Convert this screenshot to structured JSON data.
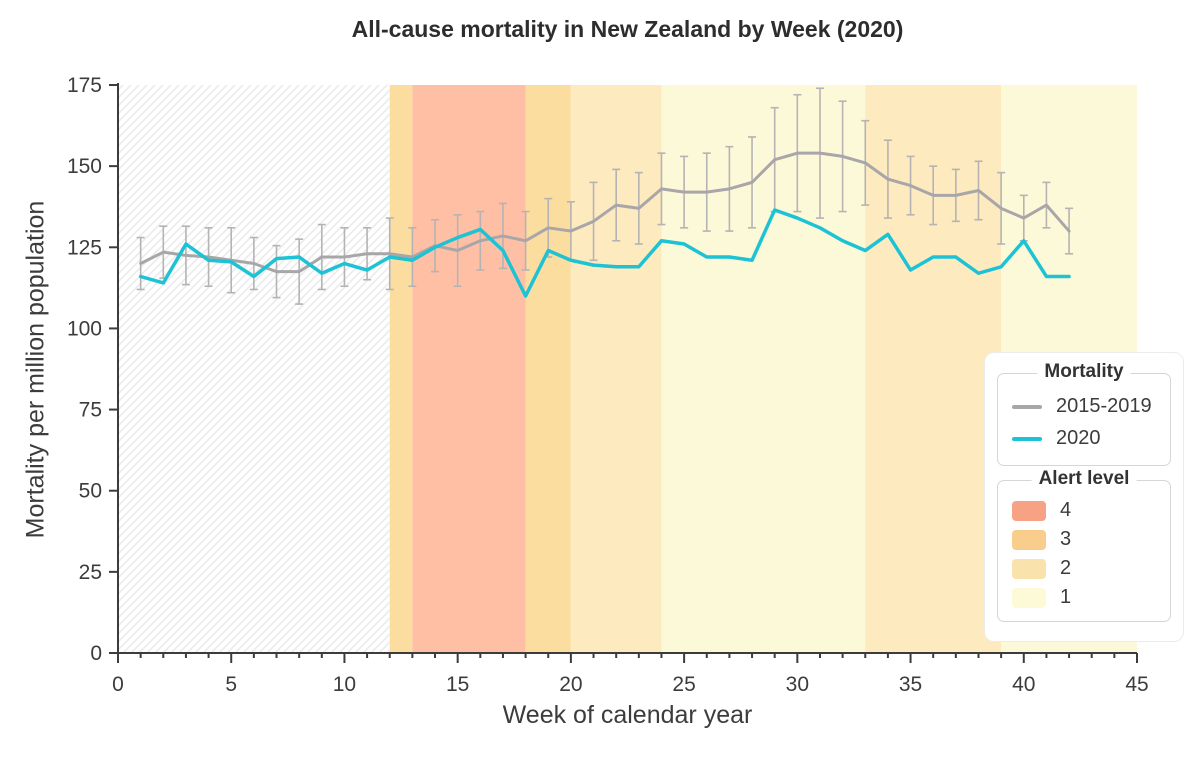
{
  "title": "All-cause mortality in New Zealand by Week (2020)",
  "x_axis": {
    "label": "Week of calendar year",
    "ticks": [
      0,
      5,
      10,
      15,
      20,
      25,
      30,
      35,
      40,
      45
    ],
    "minor_tick_step": 1
  },
  "y_axis": {
    "label": "Mortality per million population",
    "ticks": [
      0,
      25,
      50,
      75,
      100,
      125,
      150,
      175
    ]
  },
  "legend_mortality": {
    "title": "Mortality",
    "items": [
      {
        "label": "2015-2019",
        "color": "#a8a6a8"
      },
      {
        "label": "2020",
        "color": "#1dc3d4"
      }
    ]
  },
  "legend_alert": {
    "title": "Alert level",
    "items": [
      {
        "label": "4",
        "color": "#f7a284"
      },
      {
        "label": "3",
        "color": "#f9cd8b"
      },
      {
        "label": "2",
        "color": "#fae2ad"
      },
      {
        "label": "1",
        "color": "#fdfad8"
      }
    ]
  },
  "chart_data": {
    "type": "line",
    "title": "All-cause mortality in New Zealand by Week (2020)",
    "xlabel": "Week of calendar year",
    "ylabel": "Mortality per million population",
    "xlim": [
      0,
      45
    ],
    "ylim": [
      0,
      175
    ],
    "grid": false,
    "legend_position": "right",
    "x": [
      1,
      2,
      3,
      4,
      5,
      6,
      7,
      8,
      9,
      10,
      11,
      12,
      13,
      14,
      15,
      16,
      17,
      18,
      19,
      20,
      21,
      22,
      23,
      24,
      25,
      26,
      27,
      28,
      29,
      30,
      31,
      32,
      33,
      34,
      35,
      36,
      37,
      38,
      39,
      40,
      41,
      42
    ],
    "series": [
      {
        "name": "2015-2019",
        "color": "#a8a6a8",
        "error_bar_color": "#b5b3b3",
        "values": [
          120,
          123.5,
          122.5,
          122,
          121,
          120,
          117.5,
          117.5,
          122,
          122,
          123,
          123,
          122,
          125.5,
          124,
          127,
          128.5,
          127,
          131,
          130,
          133,
          138,
          137,
          143,
          142,
          142,
          143,
          145,
          152,
          154,
          154,
          153,
          151,
          146,
          144,
          141,
          141,
          142.5,
          137,
          134,
          138,
          130
        ],
        "errors": [
          8,
          8,
          9,
          9,
          10,
          8,
          8,
          10,
          10,
          9,
          8,
          11,
          9,
          8,
          11,
          9,
          10,
          9,
          9,
          9,
          12,
          11,
          11,
          11,
          11,
          12,
          13,
          14,
          16,
          18,
          20,
          17,
          13,
          12,
          9,
          9,
          8,
          9,
          11,
          7,
          7,
          7
        ]
      },
      {
        "name": "2020",
        "color": "#1dc3d4",
        "values": [
          116,
          114,
          126,
          121,
          120.5,
          116,
          121.5,
          122,
          117,
          120,
          118,
          122,
          121,
          125,
          128,
          130.5,
          124,
          110,
          124,
          121,
          119.5,
          119,
          119,
          127,
          126,
          122,
          122,
          121,
          136.5,
          134,
          131,
          127,
          124,
          129,
          118,
          122,
          122,
          117,
          119,
          127,
          116,
          116
        ]
      }
    ],
    "hatched_region": {
      "from": 0,
      "to": 12,
      "meaning": "pre-alert-level period",
      "hatch_color": "#ebebeb"
    },
    "alert_bands": [
      {
        "level": 3,
        "from": 12,
        "to": 13,
        "color": "#fcdda0"
      },
      {
        "level": 4,
        "from": 13,
        "to": 18,
        "color": "#ffbfa5"
      },
      {
        "level": 3,
        "from": 18,
        "to": 20,
        "color": "#fcdda0"
      },
      {
        "level": 2,
        "from": 20,
        "to": 24,
        "color": "#fdeabf"
      },
      {
        "level": 1,
        "from": 24,
        "to": 33,
        "color": "#fcf9d8"
      },
      {
        "level": 2,
        "from": 33,
        "to": 39,
        "color": "#fdeabf"
      },
      {
        "level": 1,
        "from": 39,
        "to": 45,
        "color": "#fcf9d8"
      }
    ],
    "axis_color": "#3c3c3c"
  }
}
